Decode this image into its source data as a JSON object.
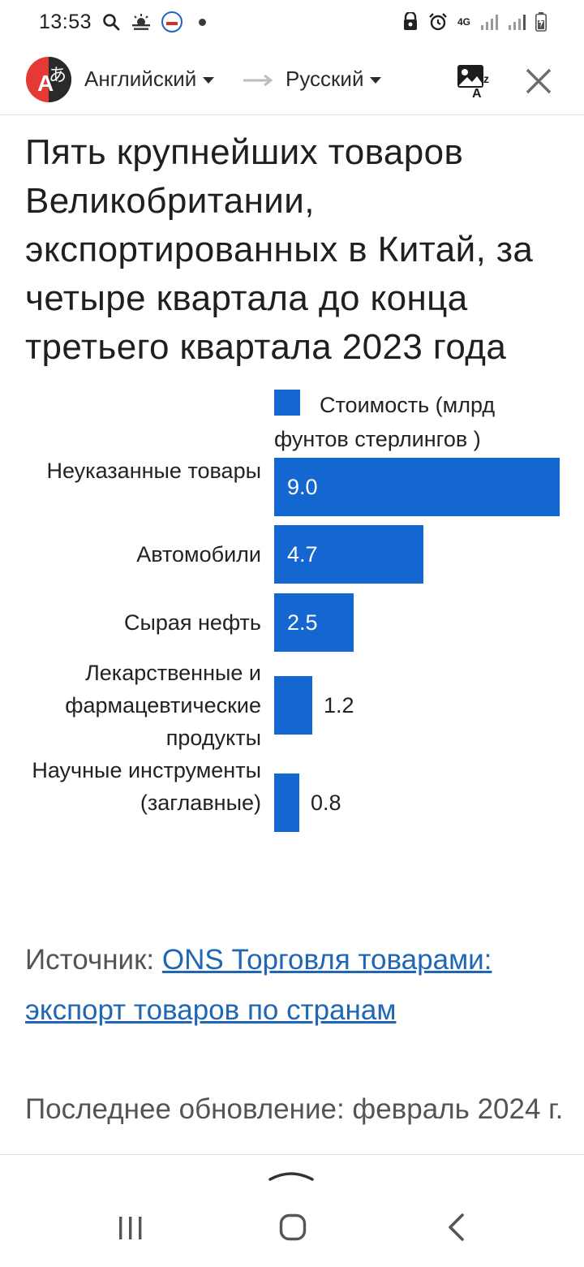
{
  "status_bar": {
    "time": "13:53",
    "network": "4G"
  },
  "toolbar": {
    "source_language": "Английский",
    "target_language": "Русский"
  },
  "article": {
    "title": "Пять крупнейших товаров Великобритании, экспортированных в Китай, за четыре квартала до конца третьего квартала 2023 года",
    "source_label": "Источник: ",
    "source_link": "ONS Торговля товарами: экспорт товаров по странам",
    "updated": "Последнее обновление: февраль 2024 г."
  },
  "chart_data": {
    "type": "bar",
    "orientation": "horizontal",
    "title": "",
    "legend": "Стоимость (млрд фунтов стерлингов )",
    "legend_position": "top",
    "categories": [
      "Неуказанные товары",
      "Автомобили",
      "Сырая нефть",
      "Лекарственные и фармацевтические продукты",
      "Научные инструменты (заглавные)"
    ],
    "values": [
      9.0,
      4.7,
      2.5,
      1.2,
      0.8
    ],
    "value_labels": [
      "9.0",
      "4.7",
      "2.5",
      "1.2",
      "0.8"
    ],
    "xlim": [
      0,
      9.0
    ],
    "grid": false,
    "bar_color": "#1467d1"
  },
  "colors": {
    "accent": "#1467d1",
    "link": "#1f66b5",
    "logo_red": "#e53935",
    "logo_dark": "#2a2a2a"
  }
}
